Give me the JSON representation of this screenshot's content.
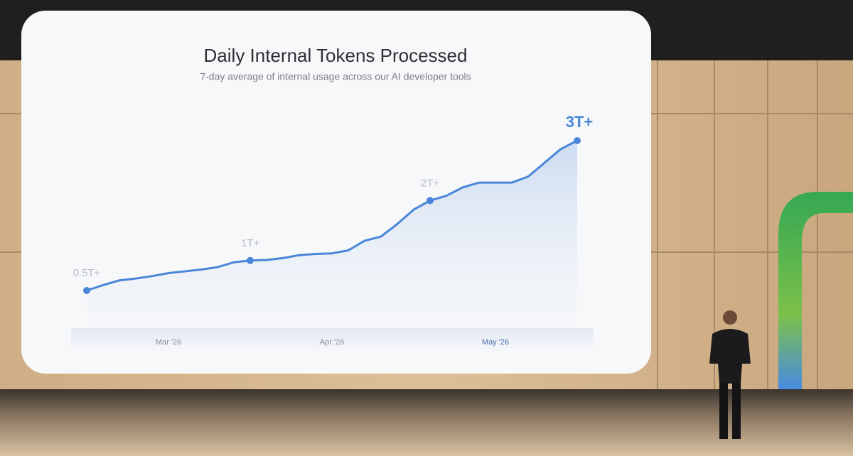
{
  "chart_data": {
    "type": "line",
    "title": "Daily Internal Tokens Processed",
    "subtitle": "7-day average of internal usage across our AI developer tools",
    "categories": [
      null,
      null,
      null,
      null,
      null,
      "Mar '26",
      null,
      null,
      null,
      null,
      null,
      null,
      null,
      null,
      null,
      "Apr '26",
      null,
      null,
      null,
      null,
      null,
      null,
      null,
      null,
      null,
      "May '26",
      null,
      null,
      null,
      null,
      null
    ],
    "values": [
      0.5,
      0.59,
      0.67,
      0.7,
      0.74,
      0.79,
      0.82,
      0.85,
      0.89,
      0.97,
      1.0,
      1.01,
      1.04,
      1.09,
      1.11,
      1.12,
      1.17,
      1.33,
      1.4,
      1.61,
      1.85,
      2.0,
      2.08,
      2.22,
      2.3,
      2.3,
      2.3,
      2.4,
      2.63,
      2.86,
      3.0
    ],
    "value_labels": [
      "0.5T+",
      null,
      null,
      null,
      null,
      null,
      null,
      null,
      null,
      null,
      "1T+",
      null,
      null,
      null,
      null,
      null,
      null,
      null,
      null,
      null,
      null,
      "2T+",
      null,
      null,
      null,
      null,
      null,
      null,
      null,
      null,
      "3T+"
    ],
    "color": "#4a86d8"
  }
}
